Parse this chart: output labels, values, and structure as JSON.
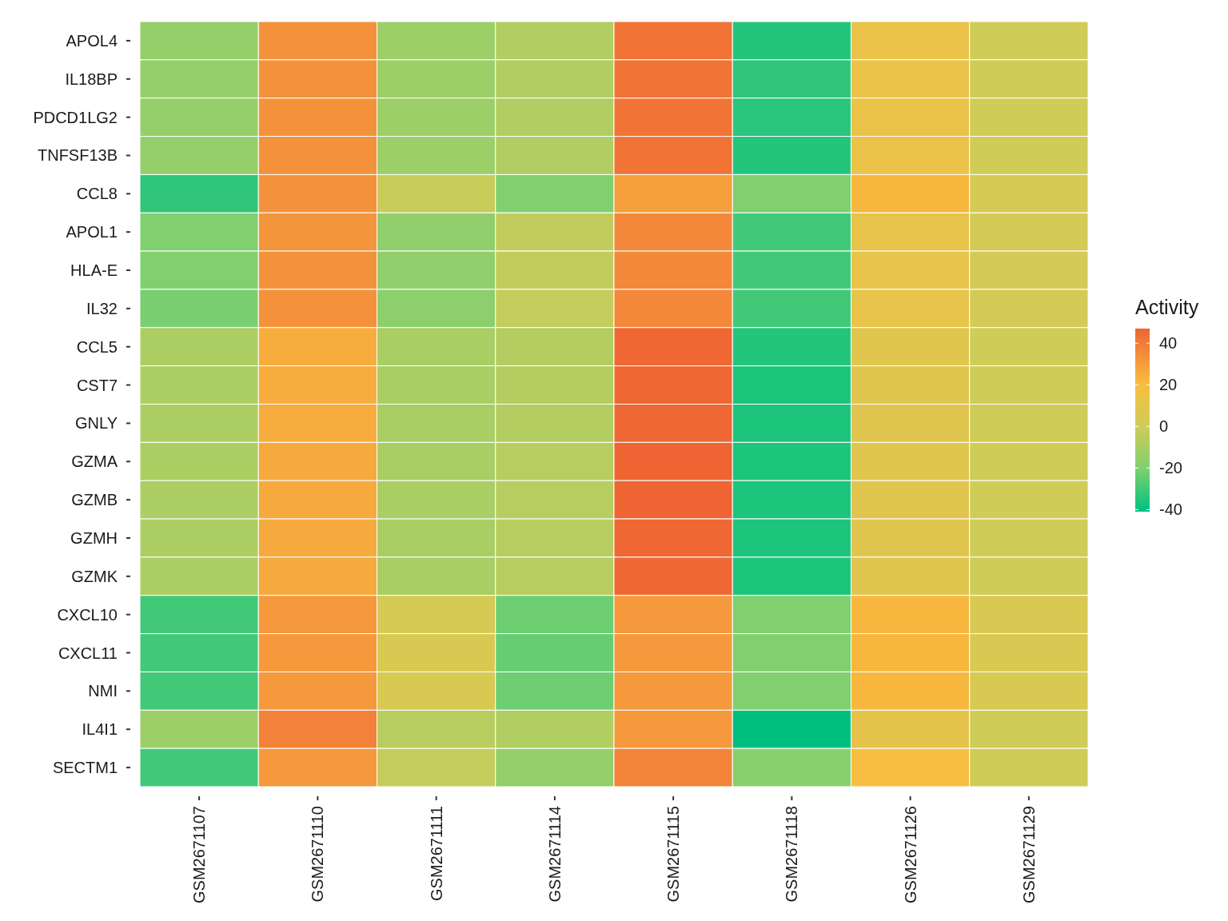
{
  "chart_data": {
    "type": "heatmap",
    "clabel": "Activity",
    "categories": [
      "GSM2671107",
      "GSM2671110",
      "GSM2671111",
      "GSM2671114",
      "GSM2671115",
      "GSM2671118",
      "GSM2671126",
      "GSM2671129"
    ],
    "y_categories": [
      "APOL4",
      "IL18BP",
      "PDCD1LG2",
      "TNFSF13B",
      "CCL8",
      "APOL1",
      "HLA-E",
      "IL32",
      "CCL5",
      "CST7",
      "GNLY",
      "GZMA",
      "GZMB",
      "GZMH",
      "GZMK",
      "CXCL10",
      "CXCL11",
      "NMI",
      "IL4I1",
      "SECTM1"
    ],
    "cells": [
      [
        -15,
        33,
        -13,
        -8,
        42,
        -35,
        13,
        0
      ],
      [
        -15,
        33,
        -13,
        -8,
        42,
        -33,
        13,
        0
      ],
      [
        -15,
        33,
        -13,
        -8,
        42,
        -34,
        13,
        0
      ],
      [
        -15,
        33,
        -13,
        -8,
        42,
        -35,
        13,
        0
      ],
      [
        -33,
        33,
        -2,
        -20,
        29,
        -20,
        22,
        3
      ],
      [
        -20,
        32,
        -16,
        -4,
        36,
        -30,
        12,
        2
      ],
      [
        -20,
        33,
        -16,
        -4,
        36,
        -30,
        12,
        2
      ],
      [
        -21,
        33,
        -17,
        -3,
        36,
        -30,
        12,
        2
      ],
      [
        -9,
        25,
        -10,
        -7,
        46,
        -35,
        8,
        0
      ],
      [
        -9,
        25,
        -10,
        -7,
        46,
        -36,
        8,
        0
      ],
      [
        -9,
        25,
        -10,
        -7,
        46,
        -36,
        8,
        0
      ],
      [
        -9,
        26,
        -10,
        -6,
        47,
        -36,
        8,
        0
      ],
      [
        -9,
        26,
        -10,
        -6,
        47,
        -36,
        8,
        0
      ],
      [
        -9,
        26,
        -10,
        -6,
        46,
        -36,
        8,
        0
      ],
      [
        -9,
        26,
        -10,
        -6,
        46,
        -36,
        8,
        0
      ],
      [
        -30,
        31,
        3,
        -23,
        31,
        -20,
        22,
        4
      ],
      [
        -30,
        31,
        4,
        -24,
        31,
        -20,
        22,
        4
      ],
      [
        -30,
        31,
        4,
        -23,
        31,
        -20,
        22,
        4
      ],
      [
        -13,
        38,
        -6,
        -8,
        31,
        -41,
        11,
        0
      ],
      [
        -30,
        31,
        -3,
        -15,
        37,
        -18,
        19,
        0
      ]
    ],
    "clim": [
      -41,
      47
    ],
    "cticks": [
      -40,
      -20,
      0,
      20,
      40
    ]
  }
}
